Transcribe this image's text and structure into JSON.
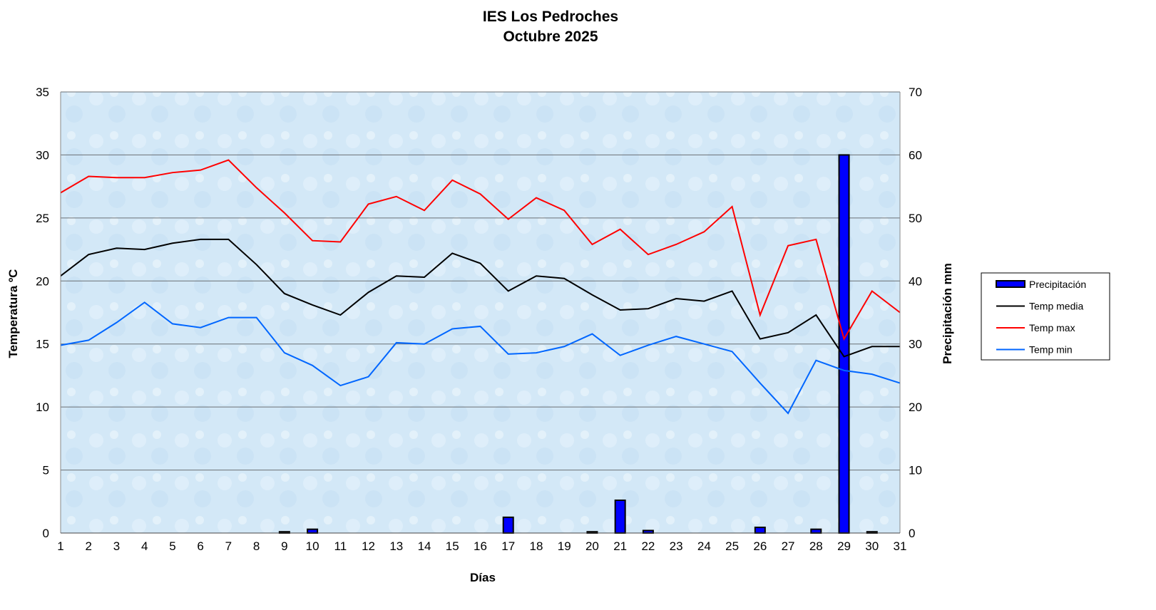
{
  "chart_data": {
    "type": "bar+line",
    "title": "IES Los Pedroches",
    "subtitle": "Octubre 2025",
    "xlabel": "Días",
    "ylabel": "Temperatura ºC",
    "y2label": "Precipitación mm",
    "ylim": [
      0,
      35
    ],
    "y2lim": [
      0,
      70
    ],
    "yticks": [
      0,
      5,
      10,
      15,
      20,
      25,
      30,
      35
    ],
    "y2ticks": [
      0,
      10,
      20,
      30,
      40,
      50,
      60,
      70
    ],
    "grid": true,
    "legend_position": "right",
    "x": [
      1,
      2,
      3,
      4,
      5,
      6,
      7,
      8,
      9,
      10,
      11,
      12,
      13,
      14,
      15,
      16,
      17,
      18,
      19,
      20,
      21,
      22,
      23,
      24,
      25,
      26,
      27,
      28,
      29,
      30,
      31
    ],
    "series": [
      {
        "name": "Precipitación",
        "type": "bar",
        "axis": "right",
        "color": "#0000ff",
        "values": [
          0,
          0,
          0,
          0,
          0,
          0,
          0,
          0,
          0.2,
          0.6,
          0,
          0,
          0,
          0,
          0,
          0,
          2.5,
          0,
          0,
          0.2,
          5.2,
          0.4,
          0,
          0,
          0,
          0.9,
          0,
          0.6,
          60,
          0.2,
          0
        ]
      },
      {
        "name": "Temp media",
        "type": "line",
        "axis": "left",
        "color": "#000000",
        "values": [
          20.4,
          22.1,
          22.6,
          22.5,
          23.0,
          23.3,
          23.3,
          21.3,
          19.0,
          18.1,
          17.3,
          19.1,
          20.4,
          20.3,
          22.2,
          21.4,
          19.2,
          20.4,
          20.2,
          18.9,
          17.7,
          17.8,
          18.6,
          18.4,
          19.2,
          15.4,
          15.9,
          17.3,
          14.0,
          14.8,
          14.8
        ]
      },
      {
        "name": "Temp max",
        "type": "line",
        "axis": "left",
        "color": "#ff0000",
        "values": [
          27.0,
          28.3,
          28.2,
          28.2,
          28.6,
          28.8,
          29.6,
          27.4,
          25.4,
          23.2,
          23.1,
          26.1,
          26.7,
          25.6,
          28.0,
          26.9,
          24.9,
          26.6,
          25.6,
          22.9,
          24.1,
          22.1,
          22.9,
          23.9,
          25.9,
          17.3,
          22.8,
          23.3,
          15.4,
          19.2,
          17.5
        ]
      },
      {
        "name": "Temp min",
        "type": "line",
        "axis": "left",
        "color": "#0066ff",
        "values": [
          14.9,
          15.3,
          16.7,
          18.3,
          16.6,
          16.3,
          17.1,
          17.1,
          14.3,
          13.3,
          11.7,
          12.4,
          15.1,
          15.0,
          16.2,
          16.4,
          14.2,
          14.3,
          14.8,
          15.8,
          14.1,
          14.9,
          15.6,
          15.0,
          14.4,
          11.9,
          9.5,
          13.7,
          12.9,
          12.6,
          11.9
        ]
      }
    ]
  }
}
